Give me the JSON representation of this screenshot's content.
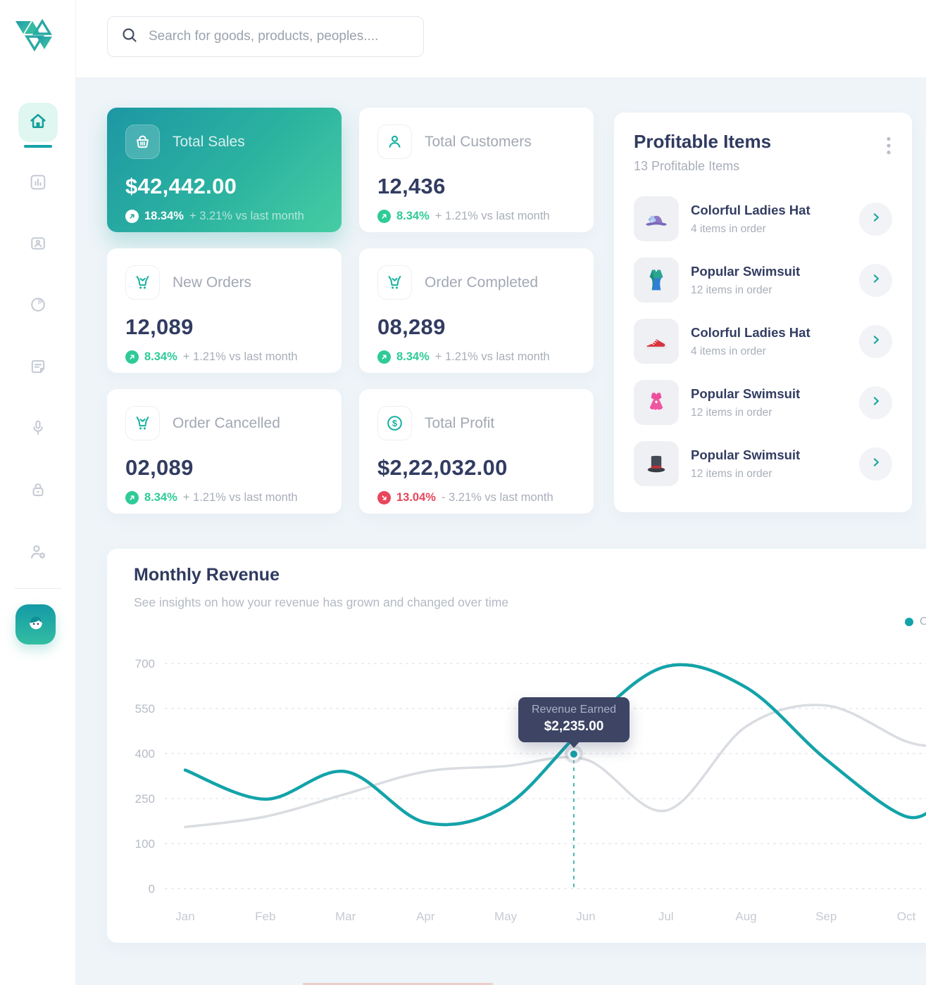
{
  "colors": {
    "accent": "#13a3a9",
    "accent_gradient_light": "#46cda3",
    "green": "#2ecb98",
    "green_text": "#27c08d",
    "red": "#e8465b",
    "navy": "#323c61",
    "muted": "#a8aeb9",
    "tooltip_bg": "#3d4464",
    "gray_line": "#d9dce1"
  },
  "search": {
    "placeholder": "Search for goods, products, peoples...."
  },
  "sidebar": {
    "items": [
      {
        "icon": "home-icon",
        "active": true
      },
      {
        "icon": "bar-chart-icon",
        "active": false
      },
      {
        "icon": "contact-card-icon",
        "active": false
      },
      {
        "icon": "pie-chart-icon",
        "active": false
      },
      {
        "icon": "note-icon",
        "active": false
      },
      {
        "icon": "microphone-icon",
        "active": false
      },
      {
        "icon": "lock-icon",
        "active": false
      },
      {
        "icon": "user-settings-icon",
        "active": false
      }
    ],
    "support_icon": "support-headset-icon"
  },
  "stats": [
    {
      "label": "Total Sales",
      "value": "$42,442.00",
      "delta": "18.34%",
      "direction": "up",
      "comparison": "+ 3.21% vs last month",
      "icon": "basket-icon",
      "highlight": true
    },
    {
      "label": "Total Customers",
      "value": "12,436",
      "delta": "8.34%",
      "direction": "up",
      "comparison": "+ 1.21% vs last month",
      "icon": "person-icon",
      "highlight": false
    },
    {
      "label": "New Orders",
      "value": "12,089",
      "delta": "8.34%",
      "direction": "up",
      "comparison": "+ 1.21% vs last month",
      "icon": "cart-icon",
      "highlight": false
    },
    {
      "label": "Order Completed",
      "value": "08,289",
      "delta": "8.34%",
      "direction": "up",
      "comparison": "+ 1.21% vs last month",
      "icon": "cart-icon",
      "highlight": false
    },
    {
      "label": "Order Cancelled",
      "value": "02,089",
      "delta": "8.34%",
      "direction": "up",
      "comparison": "+ 1.21% vs last month",
      "icon": "cart-icon",
      "highlight": false
    },
    {
      "label": "Total Profit",
      "value": "$2,22,032.00",
      "delta": "13.04%",
      "direction": "down",
      "comparison": "- 3.21% vs last month",
      "icon": "dollar-circle-icon",
      "highlight": false
    }
  ],
  "profitable_items": {
    "title": "Profitable Items",
    "subtitle": "13 Profitable Items",
    "items": [
      {
        "name": "Colorful Ladies Hat",
        "orders": "4 items in order",
        "icon": "ladies-hat"
      },
      {
        "name": "Popular Swimsuit",
        "orders": "12 items in order",
        "icon": "swimsuit"
      },
      {
        "name": "Colorful Ladies Hat",
        "orders": "4 items in order",
        "icon": "sneaker"
      },
      {
        "name": "Popular Swimsuit",
        "orders": "12 items in order",
        "icon": "dress"
      },
      {
        "name": "Popular Swimsuit",
        "orders": "12 items in order",
        "icon": "top-hat"
      }
    ]
  },
  "chart_data": {
    "type": "line",
    "title": "Monthly Revenue",
    "subtitle": "See insights on how your revenue has grown and changed over time",
    "categories": [
      "Jan",
      "Feb",
      "Mar",
      "Apr",
      "May",
      "Jun",
      "Jul",
      "Aug",
      "Sep",
      "Oct"
    ],
    "y_ticks": [
      0,
      100,
      250,
      400,
      550,
      700
    ],
    "grid": "dashed-horizontal",
    "legend": {
      "visible_label": "C",
      "position": "top-right",
      "color": "#13a3a9"
    },
    "series": [
      {
        "name": "revenue-earned",
        "color": "#13a3a9",
        "width": 4.5,
        "values": [
          345,
          248,
          340,
          170,
          225,
          490,
          690,
          620,
          380,
          190
        ],
        "edge_value": 255
      },
      {
        "name": "previous-period",
        "color": "#d9dce1",
        "width": 3.5,
        "values": [
          155,
          190,
          265,
          340,
          358,
          380,
          210,
          490,
          560,
          440
        ],
        "edge_value": 425
      }
    ],
    "tooltip": {
      "label": "Revenue Earned",
      "amount": "$2,235.00",
      "month_position": 4.85,
      "value": 398
    }
  }
}
